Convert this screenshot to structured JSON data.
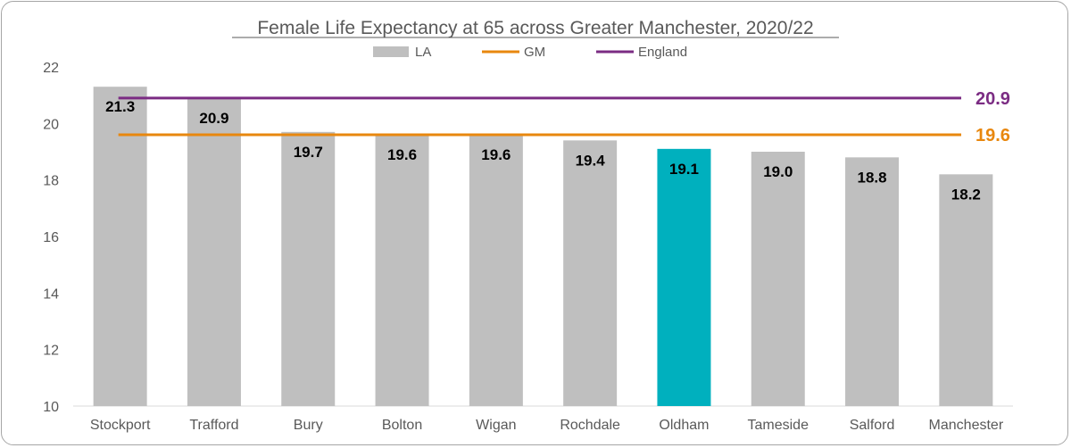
{
  "chart_data": {
    "type": "bar",
    "title": "Female Life Expectancy at 65 across Greater Manchester, 2020/22",
    "categories": [
      "Stockport",
      "Trafford",
      "Bury",
      "Bolton",
      "Wigan",
      "Rochdale",
      "Oldham",
      "Tameside",
      "Salford",
      "Manchester"
    ],
    "series": [
      {
        "name": "LA",
        "values": [
          21.3,
          20.9,
          19.7,
          19.6,
          19.6,
          19.4,
          19.1,
          19.0,
          18.8,
          18.2
        ],
        "data_labels": [
          "21.3",
          "20.9",
          "19.7",
          "19.6",
          "19.6",
          "19.4",
          "19.1",
          "19.0",
          "18.8",
          "18.2"
        ],
        "color": "#bfbfbf",
        "highlight": {
          "category": "Oldham",
          "color": "#00b0be"
        }
      }
    ],
    "reference_lines": [
      {
        "name": "GM",
        "value": 19.6,
        "label": "19.6",
        "color": "#e8870e"
      },
      {
        "name": "England",
        "value": 20.9,
        "label": "20.9",
        "color": "#7b2c83"
      }
    ],
    "ylim": [
      10,
      22
    ],
    "yticks": [
      "10",
      "12",
      "14",
      "16",
      "18",
      "20",
      "22"
    ],
    "xlabel": "",
    "ylabel": "",
    "grid": false,
    "legend_position": "top-center"
  }
}
